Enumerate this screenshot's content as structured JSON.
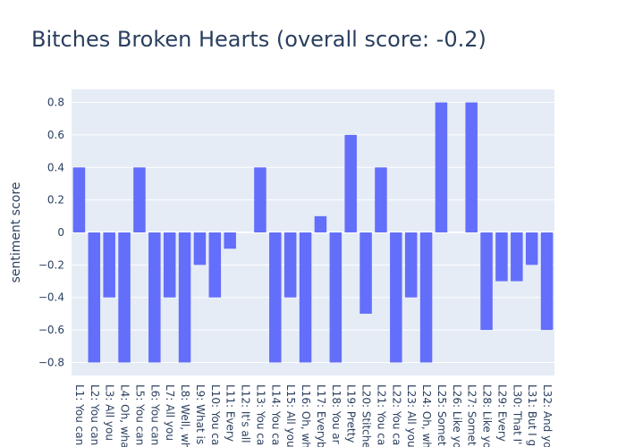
{
  "chart_data": {
    "type": "bar",
    "title": "Bitches Broken Hearts (overall score: -0.2)",
    "xlabel": "",
    "ylabel": "sentiment score",
    "ylim": [
      -0.88,
      0.88
    ],
    "yticks": [
      -0.8,
      -0.6,
      -0.4,
      -0.2,
      0,
      0.2,
      0.4,
      0.6,
      0.8
    ],
    "ytick_labels": [
      "−0.8",
      "−0.6",
      "−0.4",
      "−0.2",
      "0",
      "0.2",
      "0.4",
      "0.6",
      "0.8"
    ],
    "grid": true,
    "colors": {
      "bar": "#636efa",
      "plot_bg": "#e5ecf6",
      "grid": "#ffffff",
      "text": "#2a3f5f"
    },
    "categories": [
      "L1: You can",
      "L2: You can",
      "L3: All you",
      "L4: Oh, wha",
      "L5: You can",
      "L6: You can",
      "L7: All you",
      "L8: Well, wh",
      "L9: What is",
      "L10: You ca",
      "L11: Every",
      "L12: It's all",
      "L13: You ca",
      "L14: You ca",
      "L15: All you",
      "L16: Oh, wh",
      "L17: Everyb",
      "L18: You ar",
      "L19: Pretty",
      "L20: Stitche",
      "L21: You ca",
      "L22: You ca",
      "L23: All you",
      "L24: Oh, wh",
      "L25: Somet",
      "L26: Like yo",
      "L27: Somet",
      "L28: Like yo",
      "L29: Every",
      "L30: That I'",
      "L31: But I g",
      "L32: And yo"
    ],
    "values": [
      0.4,
      -0.8,
      -0.4,
      -0.8,
      0.4,
      -0.8,
      -0.4,
      -0.8,
      -0.2,
      -0.4,
      -0.1,
      0,
      0.4,
      -0.8,
      -0.4,
      -0.8,
      0.1,
      -0.8,
      0.6,
      -0.5,
      0.4,
      -0.8,
      -0.4,
      -0.8,
      0.8,
      0,
      0.8,
      -0.6,
      -0.3,
      -0.3,
      -0.2,
      -0.6
    ]
  }
}
